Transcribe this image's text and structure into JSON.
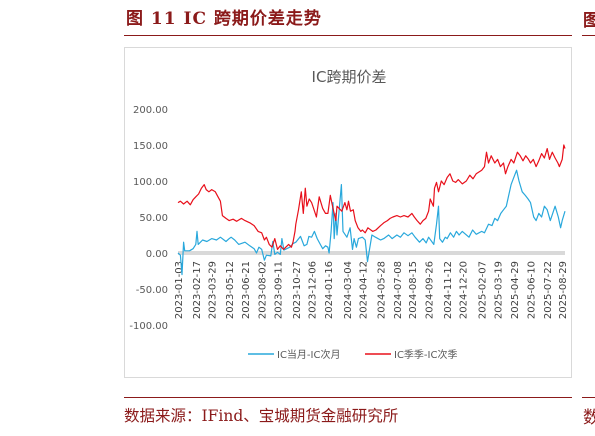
{
  "figure": {
    "title": "图 11  IC 跨期价差走势",
    "source": "数据来源：IFind、宝城期货金融研究所",
    "side_glyph_top": "图",
    "side_glyph_bottom": "数"
  },
  "colors": {
    "accent": "#8b1a1a",
    "series_1": "#29a8dc",
    "series_2": "#e8101b",
    "zero_band": "#d9d9d9"
  },
  "chart_data": {
    "type": "line",
    "title": "IC跨期价差",
    "ylim": [
      -100,
      200
    ],
    "yticks": [
      -100,
      -50,
      0,
      50,
      100,
      150,
      200
    ],
    "ytick_labels": [
      "-100.00",
      "-50.00",
      "0.00",
      "50.00",
      "100.00",
      "150.00",
      "200.00"
    ],
    "xlim": [
      "2023-01-03",
      "2025-09-05"
    ],
    "xticks": [
      "2023-01-03",
      "2023-02-17",
      "2023-03-29",
      "2023-05-12",
      "2023-06-21",
      "2023-08-02",
      "2023-09-11",
      "2023-10-27",
      "2023-12-06",
      "2024-01-16",
      "2024-03-04",
      "2024-04-12",
      "2024-05-28",
      "2024-07-08",
      "2024-08-15",
      "2024-09-26",
      "2024-11-12",
      "2024-12-20",
      "2025-02-07",
      "2025-03-19",
      "2025-04-29",
      "2025-06-10",
      "2025-07-22",
      "2025-08-29"
    ],
    "legend_position": "bottom",
    "grid": false,
    "series": [
      {
        "name": "IC当月-IC次月",
        "color": "#29a8dc",
        "points": [
          [
            "2023-01-03",
            0
          ],
          [
            "2023-01-09",
            -3
          ],
          [
            "2023-01-13",
            -30
          ],
          [
            "2023-01-17",
            15
          ],
          [
            "2023-01-20",
            3
          ],
          [
            "2023-02-01",
            3
          ],
          [
            "2023-02-10",
            6
          ],
          [
            "2023-02-17",
            12
          ],
          [
            "2023-02-20",
            30
          ],
          [
            "2023-02-23",
            12
          ],
          [
            "2023-03-06",
            18
          ],
          [
            "2023-03-17",
            16
          ],
          [
            "2023-03-29",
            20
          ],
          [
            "2023-04-10",
            18
          ],
          [
            "2023-04-20",
            22
          ],
          [
            "2023-05-04",
            16
          ],
          [
            "2023-05-12",
            20
          ],
          [
            "2023-05-17",
            22
          ],
          [
            "2023-05-26",
            18
          ],
          [
            "2023-06-05",
            12
          ],
          [
            "2023-06-21",
            15
          ],
          [
            "2023-07-03",
            10
          ],
          [
            "2023-07-14",
            6
          ],
          [
            "2023-07-20",
            0
          ],
          [
            "2023-07-26",
            8
          ],
          [
            "2023-08-02",
            5
          ],
          [
            "2023-08-09",
            -10
          ],
          [
            "2023-08-14",
            -3
          ],
          [
            "2023-08-25",
            -4
          ],
          [
            "2023-08-30",
            16
          ],
          [
            "2023-09-04",
            -2
          ],
          [
            "2023-09-11",
            1
          ],
          [
            "2023-09-18",
            -2
          ],
          [
            "2023-09-22",
            20
          ],
          [
            "2023-09-27",
            4
          ],
          [
            "2023-10-12",
            8
          ],
          [
            "2023-10-20",
            13
          ],
          [
            "2023-10-27",
            15
          ],
          [
            "2023-11-08",
            23
          ],
          [
            "2023-11-17",
            10
          ],
          [
            "2023-11-24",
            12
          ],
          [
            "2023-11-29",
            23
          ],
          [
            "2023-12-06",
            22
          ],
          [
            "2023-12-13",
            30
          ],
          [
            "2023-12-20",
            20
          ],
          [
            "2023-12-28",
            12
          ],
          [
            "2024-01-03",
            6
          ],
          [
            "2024-01-10",
            10
          ],
          [
            "2024-01-16",
            8
          ],
          [
            "2024-01-19",
            0
          ],
          [
            "2024-01-24",
            30
          ],
          [
            "2024-01-29",
            70
          ],
          [
            "2024-02-01",
            20
          ],
          [
            "2024-02-05",
            55
          ],
          [
            "2024-02-08",
            25
          ],
          [
            "2024-02-19",
            95
          ],
          [
            "2024-02-23",
            30
          ],
          [
            "2024-03-04",
            22
          ],
          [
            "2024-03-12",
            35
          ],
          [
            "2024-03-18",
            5
          ],
          [
            "2024-03-22",
            20
          ],
          [
            "2024-03-28",
            8
          ],
          [
            "2024-04-02",
            20
          ],
          [
            "2024-04-12",
            22
          ],
          [
            "2024-04-19",
            18
          ],
          [
            "2024-04-25",
            -12
          ],
          [
            "2024-05-06",
            25
          ],
          [
            "2024-05-15",
            22
          ],
          [
            "2024-05-28",
            18
          ],
          [
            "2024-06-05",
            20
          ],
          [
            "2024-06-17",
            25
          ],
          [
            "2024-06-26",
            20
          ],
          [
            "2024-07-08",
            25
          ],
          [
            "2024-07-17",
            22
          ],
          [
            "2024-07-26",
            28
          ],
          [
            "2024-08-05",
            24
          ],
          [
            "2024-08-15",
            28
          ],
          [
            "2024-08-23",
            22
          ],
          [
            "2024-09-03",
            15
          ],
          [
            "2024-09-12",
            20
          ],
          [
            "2024-09-20",
            14
          ],
          [
            "2024-09-26",
            22
          ],
          [
            "2024-10-09",
            12
          ],
          [
            "2024-10-16",
            40
          ],
          [
            "2024-10-21",
            65
          ],
          [
            "2024-10-24",
            20
          ],
          [
            "2024-10-31",
            15
          ],
          [
            "2024-11-07",
            22
          ],
          [
            "2024-11-12",
            20
          ],
          [
            "2024-11-20",
            28
          ],
          [
            "2024-11-28",
            22
          ],
          [
            "2024-12-05",
            30
          ],
          [
            "2024-12-12",
            25
          ],
          [
            "2024-12-20",
            30
          ],
          [
            "2025-01-06",
            22
          ],
          [
            "2025-01-15",
            32
          ],
          [
            "2025-01-24",
            26
          ],
          [
            "2025-02-07",
            30
          ],
          [
            "2025-02-14",
            28
          ],
          [
            "2025-02-24",
            40
          ],
          [
            "2025-03-05",
            38
          ],
          [
            "2025-03-12",
            48
          ],
          [
            "2025-03-19",
            45
          ],
          [
            "2025-03-27",
            55
          ],
          [
            "2025-04-03",
            60
          ],
          [
            "2025-04-10",
            65
          ],
          [
            "2025-04-16",
            80
          ],
          [
            "2025-04-22",
            95
          ],
          [
            "2025-04-29",
            105
          ],
          [
            "2025-05-06",
            115
          ],
          [
            "2025-05-12",
            100
          ],
          [
            "2025-05-20",
            85
          ],
          [
            "2025-05-28",
            80
          ],
          [
            "2025-06-04",
            75
          ],
          [
            "2025-06-10",
            70
          ],
          [
            "2025-06-18",
            50
          ],
          [
            "2025-06-24",
            45
          ],
          [
            "2025-07-01",
            55
          ],
          [
            "2025-07-08",
            50
          ],
          [
            "2025-07-15",
            65
          ],
          [
            "2025-07-22",
            60
          ],
          [
            "2025-07-30",
            45
          ],
          [
            "2025-08-05",
            55
          ],
          [
            "2025-08-11",
            65
          ],
          [
            "2025-08-19",
            50
          ],
          [
            "2025-08-25",
            35
          ],
          [
            "2025-08-29",
            45
          ],
          [
            "2025-09-05",
            58
          ]
        ]
      },
      {
        "name": "IC季季-IC次季",
        "color": "#e8101b",
        "points": [
          [
            "2023-01-03",
            70
          ],
          [
            "2023-01-09",
            72
          ],
          [
            "2023-01-17",
            68
          ],
          [
            "2023-01-26",
            72
          ],
          [
            "2023-02-03",
            67
          ],
          [
            "2023-02-10",
            74
          ],
          [
            "2023-02-17",
            78
          ],
          [
            "2023-02-24",
            82
          ],
          [
            "2023-03-03",
            90
          ],
          [
            "2023-03-10",
            95
          ],
          [
            "2023-03-15",
            88
          ],
          [
            "2023-03-22",
            85
          ],
          [
            "2023-03-29",
            88
          ],
          [
            "2023-04-07",
            85
          ],
          [
            "2023-04-14",
            78
          ],
          [
            "2023-04-20",
            72
          ],
          [
            "2023-04-25",
            52
          ],
          [
            "2023-05-04",
            48
          ],
          [
            "2023-05-12",
            45
          ],
          [
            "2023-05-22",
            47
          ],
          [
            "2023-05-31",
            44
          ],
          [
            "2023-06-12",
            48
          ],
          [
            "2023-06-21",
            45
          ],
          [
            "2023-07-03",
            42
          ],
          [
            "2023-07-14",
            38
          ],
          [
            "2023-07-24",
            30
          ],
          [
            "2023-08-02",
            28
          ],
          [
            "2023-08-09",
            18
          ],
          [
            "2023-08-14",
            22
          ],
          [
            "2023-08-21",
            12
          ],
          [
            "2023-08-28",
            8
          ],
          [
            "2023-09-04",
            20
          ],
          [
            "2023-09-11",
            5
          ],
          [
            "2023-09-18",
            10
          ],
          [
            "2023-09-26",
            5
          ],
          [
            "2023-10-09",
            12
          ],
          [
            "2023-10-16",
            8
          ],
          [
            "2023-10-20",
            15
          ],
          [
            "2023-10-25",
            30
          ],
          [
            "2023-10-27",
            40
          ],
          [
            "2023-11-03",
            60
          ],
          [
            "2023-11-10",
            85
          ],
          [
            "2023-11-15",
            55
          ],
          [
            "2023-11-20",
            90
          ],
          [
            "2023-11-24",
            65
          ],
          [
            "2023-11-30",
            75
          ],
          [
            "2023-12-06",
            70
          ],
          [
            "2023-12-11",
            62
          ],
          [
            "2023-12-18",
            50
          ],
          [
            "2023-12-25",
            78
          ],
          [
            "2024-01-03",
            62
          ],
          [
            "2024-01-10",
            55
          ],
          [
            "2024-01-16",
            55
          ],
          [
            "2024-01-22",
            80
          ],
          [
            "2024-01-29",
            62
          ],
          [
            "2024-02-05",
            45
          ],
          [
            "2024-02-08",
            65
          ],
          [
            "2024-02-20",
            58
          ],
          [
            "2024-02-28",
            70
          ],
          [
            "2024-03-04",
            60
          ],
          [
            "2024-03-08",
            72
          ],
          [
            "2024-03-13",
            58
          ],
          [
            "2024-03-20",
            60
          ],
          [
            "2024-03-25",
            45
          ],
          [
            "2024-04-01",
            35
          ],
          [
            "2024-04-08",
            30
          ],
          [
            "2024-04-12",
            32
          ],
          [
            "2024-04-19",
            28
          ],
          [
            "2024-04-26",
            35
          ],
          [
            "2024-05-08",
            30
          ],
          [
            "2024-05-16",
            32
          ],
          [
            "2024-05-28",
            38
          ],
          [
            "2024-06-05",
            42
          ],
          [
            "2024-06-14",
            45
          ],
          [
            "2024-06-21",
            48
          ],
          [
            "2024-06-28",
            50
          ],
          [
            "2024-07-08",
            52
          ],
          [
            "2024-07-17",
            50
          ],
          [
            "2024-07-26",
            52
          ],
          [
            "2024-08-05",
            50
          ],
          [
            "2024-08-15",
            55
          ],
          [
            "2024-08-21",
            50
          ],
          [
            "2024-08-28",
            45
          ],
          [
            "2024-09-05",
            40
          ],
          [
            "2024-09-12",
            45
          ],
          [
            "2024-09-19",
            48
          ],
          [
            "2024-09-26",
            58
          ],
          [
            "2024-09-30",
            75
          ],
          [
            "2024-10-08",
            65
          ],
          [
            "2024-10-11",
            90
          ],
          [
            "2024-10-16",
            98
          ],
          [
            "2024-10-21",
            85
          ],
          [
            "2024-10-28",
            100
          ],
          [
            "2024-11-04",
            95
          ],
          [
            "2024-11-12",
            105
          ],
          [
            "2024-11-19",
            110
          ],
          [
            "2024-11-26",
            100
          ],
          [
            "2024-12-03",
            98
          ],
          [
            "2024-12-10",
            102
          ],
          [
            "2024-12-20",
            96
          ],
          [
            "2024-12-30",
            100
          ],
          [
            "2025-01-08",
            108
          ],
          [
            "2025-01-16",
            103
          ],
          [
            "2025-01-24",
            110
          ],
          [
            "2025-02-07",
            115
          ],
          [
            "2025-02-14",
            120
          ],
          [
            "2025-02-19",
            140
          ],
          [
            "2025-02-24",
            125
          ],
          [
            "2025-03-03",
            135
          ],
          [
            "2025-03-12",
            125
          ],
          [
            "2025-03-19",
            130
          ],
          [
            "2025-03-26",
            120
          ],
          [
            "2025-04-03",
            125
          ],
          [
            "2025-04-08",
            110
          ],
          [
            "2025-04-14",
            120
          ],
          [
            "2025-04-22",
            130
          ],
          [
            "2025-04-29",
            125
          ],
          [
            "2025-05-08",
            140
          ],
          [
            "2025-05-15",
            135
          ],
          [
            "2025-05-22",
            128
          ],
          [
            "2025-05-29",
            135
          ],
          [
            "2025-06-05",
            130
          ],
          [
            "2025-06-10",
            125
          ],
          [
            "2025-06-17",
            130
          ],
          [
            "2025-06-24",
            120
          ],
          [
            "2025-07-01",
            128
          ],
          [
            "2025-07-08",
            138
          ],
          [
            "2025-07-15",
            132
          ],
          [
            "2025-07-22",
            145
          ],
          [
            "2025-07-28",
            130
          ],
          [
            "2025-08-04",
            140
          ],
          [
            "2025-08-11",
            132
          ],
          [
            "2025-08-18",
            125
          ],
          [
            "2025-08-22",
            120
          ],
          [
            "2025-08-29",
            130
          ],
          [
            "2025-09-02",
            150
          ],
          [
            "2025-09-05",
            145
          ]
        ]
      }
    ]
  }
}
